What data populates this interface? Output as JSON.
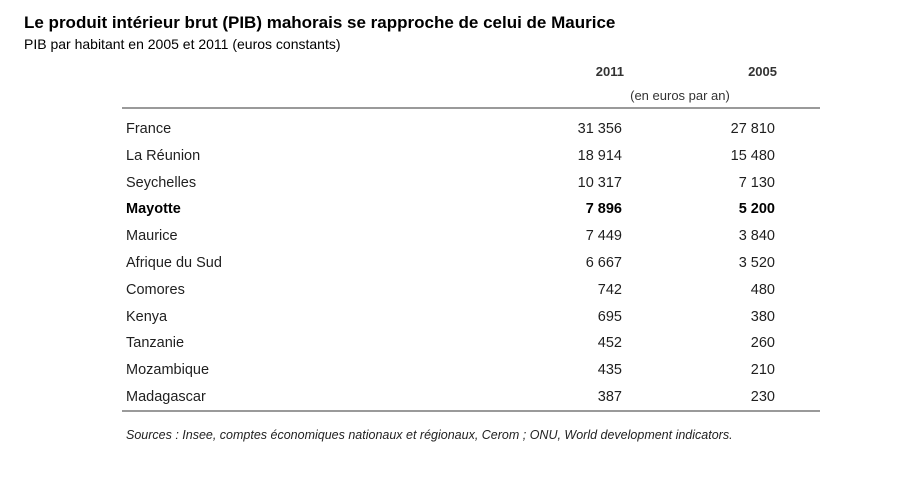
{
  "title": "Le produit intérieur brut (PIB) mahorais se rapproche de celui de Maurice",
  "subtitle": "PIB par habitant en 2005 et 2011 (euros constants)",
  "columns": {
    "col_2011": "2011",
    "col_2005": "2005",
    "units": "(en euros par an)"
  },
  "rows": [
    {
      "country": "France",
      "v2011": "31 356",
      "v2005": "27 810",
      "bold": false
    },
    {
      "country": "La Réunion",
      "v2011": "18 914",
      "v2005": "15 480",
      "bold": false
    },
    {
      "country": "Seychelles",
      "v2011": "10 317",
      "v2005": "7 130",
      "bold": false
    },
    {
      "country": "Mayotte",
      "v2011": "7 896",
      "v2005": "5 200",
      "bold": true
    },
    {
      "country": "Maurice",
      "v2011": "7 449",
      "v2005": "3 840",
      "bold": false
    },
    {
      "country": "Afrique du Sud",
      "v2011": "6 667",
      "v2005": "3 520",
      "bold": false
    },
    {
      "country": "Comores",
      "v2011": "742",
      "v2005": "480",
      "bold": false
    },
    {
      "country": "Kenya",
      "v2011": "695",
      "v2005": "380",
      "bold": false
    },
    {
      "country": "Tanzanie",
      "v2011": "452",
      "v2005": "260",
      "bold": false
    },
    {
      "country": "Mozambique",
      "v2011": "435",
      "v2005": "210",
      "bold": false
    },
    {
      "country": "Madagascar",
      "v2011": "387",
      "v2005": "230",
      "bold": false
    }
  ],
  "sources": "Sources : Insee, comptes économiques nationaux et régionaux, Cerom ; ONU, World development indicators."
}
